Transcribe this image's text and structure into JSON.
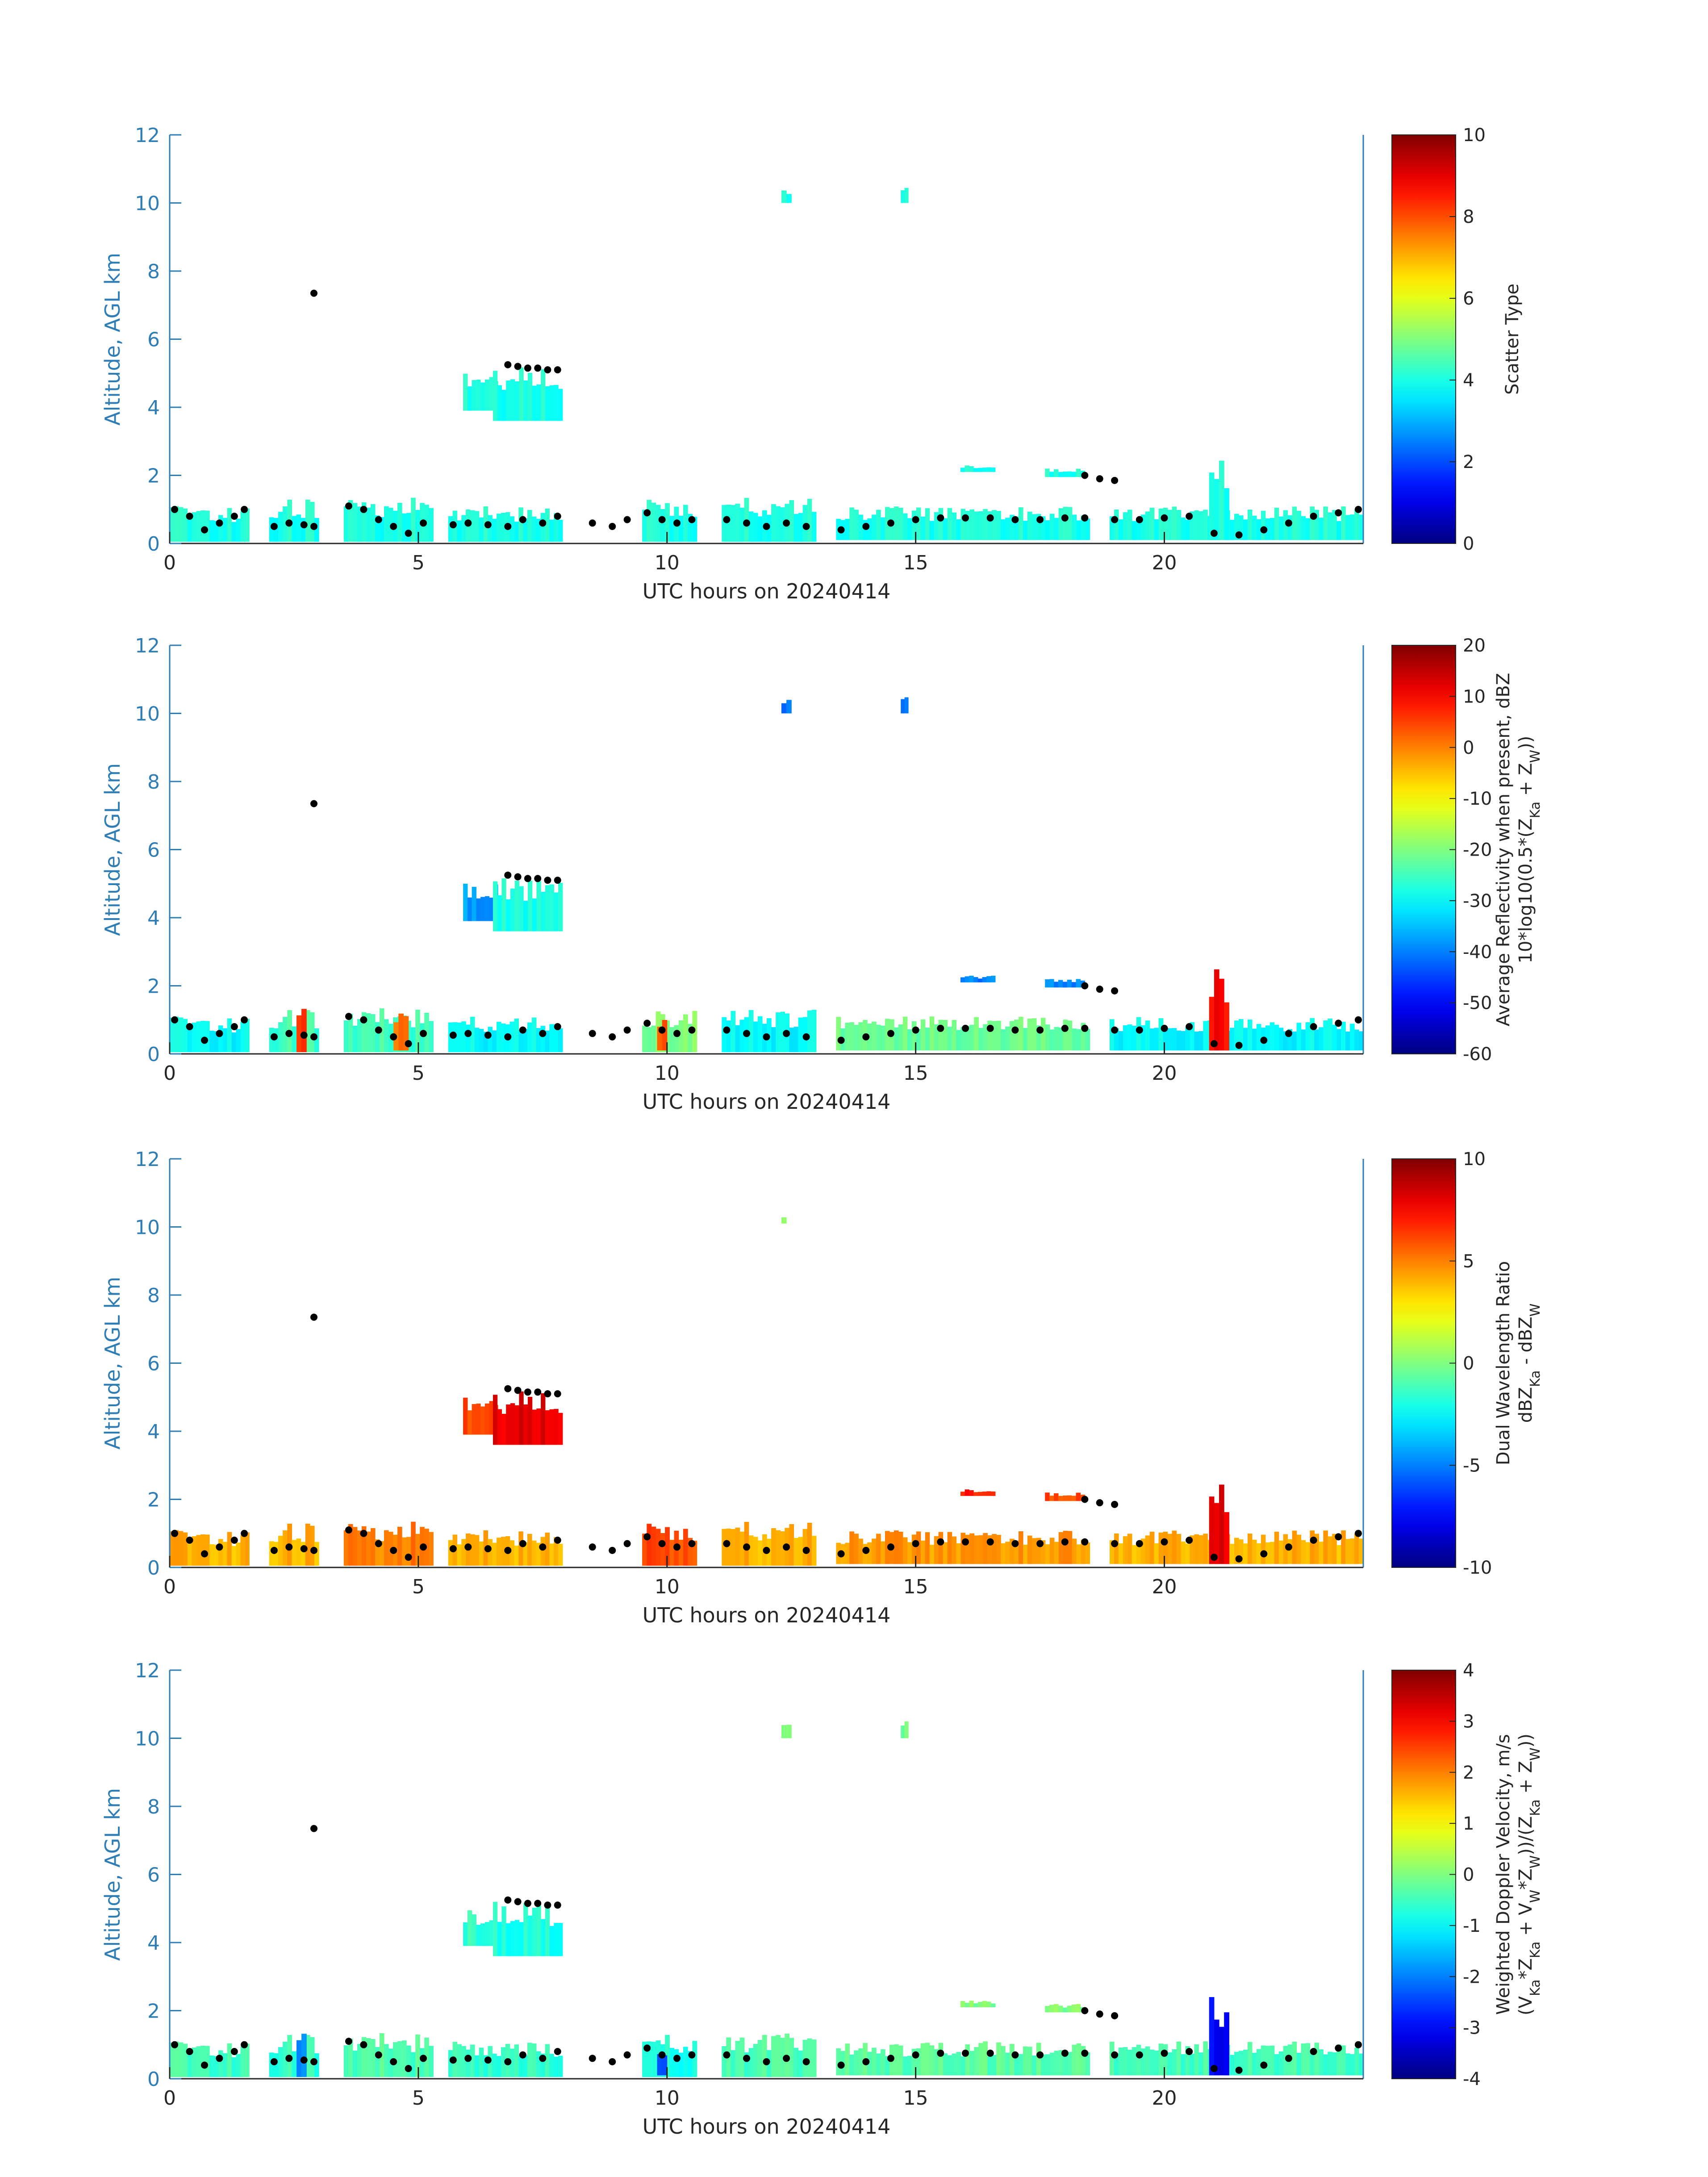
{
  "colors": {
    "axis": "#2e7db5",
    "text": "#262626",
    "cloud_base_dots": "#000000"
  },
  "colormap": "jet",
  "chart_data": [
    {
      "type": "heatmap",
      "variable": "scatter_type",
      "xlabel": "UTC hours on 20240414",
      "ylabel": "Altitude, AGL km",
      "xlim": [
        0,
        24
      ],
      "ylim": [
        0,
        12
      ],
      "xticks": [
        "0",
        "5",
        "10",
        "15",
        "20"
      ],
      "yticks": [
        "0",
        "2",
        "4",
        "6",
        "8",
        "10",
        "12"
      ],
      "colorbar": {
        "label_lines": [
          "Scatter Type"
        ],
        "clim": [
          0,
          10
        ],
        "ticks": [
          "0",
          "2",
          "4",
          "6",
          "8",
          "10"
        ]
      },
      "regions": [
        {
          "t0": 0.0,
          "t1": 1.6,
          "z0": 0.05,
          "z1": 1.1,
          "value": 4.0
        },
        {
          "t0": 2.0,
          "t1": 3.0,
          "z0": 0.05,
          "z1": 1.3,
          "value": 4.0
        },
        {
          "t0": 3.5,
          "t1": 5.3,
          "z0": 0.05,
          "z1": 1.35,
          "value": 4.0
        },
        {
          "t0": 5.6,
          "t1": 7.9,
          "z0": 0.05,
          "z1": 1.1,
          "value": 4.0
        },
        {
          "t0": 9.5,
          "t1": 10.6,
          "z0": 0.05,
          "z1": 1.3,
          "value": 4.0
        },
        {
          "t0": 11.1,
          "t1": 13.0,
          "z0": 0.05,
          "z1": 1.35,
          "value": 4.0
        },
        {
          "t0": 13.4,
          "t1": 18.5,
          "z0": 0.1,
          "z1": 1.1,
          "value": 4.0
        },
        {
          "t0": 18.9,
          "t1": 24.0,
          "z0": 0.1,
          "z1": 1.1,
          "value": 4.0
        },
        {
          "t0": 20.9,
          "t1": 21.3,
          "z0": 0.1,
          "z1": 2.6,
          "value": 4.0
        },
        {
          "t0": 5.9,
          "t1": 6.6,
          "z0": 3.9,
          "z1": 5.0,
          "value": 4.0
        },
        {
          "t0": 6.5,
          "t1": 7.9,
          "z0": 3.6,
          "z1": 5.2,
          "value": 4.0
        },
        {
          "t0": 15.9,
          "t1": 16.6,
          "z0": 2.1,
          "z1": 2.3,
          "value": 4.0
        },
        {
          "t0": 17.6,
          "t1": 18.4,
          "z0": 1.95,
          "z1": 2.2,
          "value": 4.0
        },
        {
          "t0": 12.3,
          "t1": 12.5,
          "z0": 10.0,
          "z1": 10.4,
          "value": 4.0
        },
        {
          "t0": 14.7,
          "t1": 14.85,
          "z0": 10.0,
          "z1": 10.5,
          "value": 4.0
        }
      ]
    },
    {
      "type": "heatmap",
      "variable": "average_reflectivity",
      "xlabel": "UTC hours on 20240414",
      "ylabel": "Altitude, AGL km",
      "xlim": [
        0,
        24
      ],
      "ylim": [
        0,
        12
      ],
      "xticks": [
        "0",
        "5",
        "10",
        "15",
        "20"
      ],
      "yticks": [
        "0",
        "2",
        "4",
        "6",
        "8",
        "10",
        "12"
      ],
      "colorbar": {
        "label_lines": [
          "Average Reflectivity when present, dBZ",
          "10*log10(0.5*(Z",
          "Ka",
          " + Z",
          "W",
          "))"
        ],
        "clim": [
          -60,
          20
        ],
        "ticks": [
          "-60",
          "-50",
          "-40",
          "-30",
          "-20",
          "-10",
          "0",
          "10",
          "20"
        ]
      },
      "regions": [
        {
          "t0": 0.0,
          "t1": 1.6,
          "z0": 0.05,
          "z1": 1.1,
          "value": -30
        },
        {
          "t0": 2.0,
          "t1": 3.0,
          "z0": 0.05,
          "z1": 1.3,
          "value": -25
        },
        {
          "t0": 2.55,
          "t1": 2.75,
          "z0": 0.05,
          "z1": 1.4,
          "value": 5
        },
        {
          "t0": 3.5,
          "t1": 5.3,
          "z0": 0.05,
          "z1": 1.35,
          "value": -25
        },
        {
          "t0": 4.5,
          "t1": 4.8,
          "z0": 0.1,
          "z1": 1.2,
          "value": 0
        },
        {
          "t0": 5.6,
          "t1": 7.9,
          "z0": 0.05,
          "z1": 1.1,
          "value": -30
        },
        {
          "t0": 9.5,
          "t1": 10.6,
          "z0": 0.05,
          "z1": 1.3,
          "value": -20
        },
        {
          "t0": 9.8,
          "t1": 10.0,
          "z0": 0.1,
          "z1": 1.1,
          "value": 3
        },
        {
          "t0": 11.1,
          "t1": 13.0,
          "z0": 0.05,
          "z1": 1.35,
          "value": -30
        },
        {
          "t0": 13.4,
          "t1": 18.5,
          "z0": 0.1,
          "z1": 1.1,
          "value": -22
        },
        {
          "t0": 18.9,
          "t1": 24.0,
          "z0": 0.1,
          "z1": 1.1,
          "value": -30
        },
        {
          "t0": 20.9,
          "t1": 21.3,
          "z0": 0.1,
          "z1": 2.6,
          "value": 10
        },
        {
          "t0": 5.9,
          "t1": 6.6,
          "z0": 3.9,
          "z1": 5.0,
          "value": -38
        },
        {
          "t0": 6.5,
          "t1": 7.9,
          "z0": 3.6,
          "z1": 5.2,
          "value": -28
        },
        {
          "t0": 15.9,
          "t1": 16.6,
          "z0": 2.1,
          "z1": 2.3,
          "value": -40
        },
        {
          "t0": 17.6,
          "t1": 18.4,
          "z0": 1.95,
          "z1": 2.2,
          "value": -40
        },
        {
          "t0": 12.3,
          "t1": 12.5,
          "z0": 10.0,
          "z1": 10.4,
          "value": -42
        },
        {
          "t0": 14.7,
          "t1": 14.85,
          "z0": 10.0,
          "z1": 10.5,
          "value": -42
        }
      ]
    },
    {
      "type": "heatmap",
      "variable": "dual_wavelength_ratio",
      "xlabel": "UTC hours on 20240414",
      "ylabel": "Altitude, AGL km",
      "xlim": [
        0,
        24
      ],
      "ylim": [
        0,
        12
      ],
      "xticks": [
        "0",
        "5",
        "10",
        "15",
        "20"
      ],
      "yticks": [
        "0",
        "2",
        "4",
        "6",
        "8",
        "10",
        "12"
      ],
      "colorbar": {
        "label_lines": [
          "Dual Wavelength Ratio",
          "dBZ",
          "Ka",
          " - dBZ",
          "W"
        ],
        "clim": [
          -10,
          10
        ],
        "ticks": [
          "-10",
          "-5",
          "0",
          "5",
          "10"
        ]
      },
      "regions": [
        {
          "t0": 0.0,
          "t1": 1.6,
          "z0": 0.05,
          "z1": 1.1,
          "value": 4
        },
        {
          "t0": 2.0,
          "t1": 3.0,
          "z0": 0.05,
          "z1": 1.3,
          "value": 4
        },
        {
          "t0": 3.5,
          "t1": 5.3,
          "z0": 0.05,
          "z1": 1.35,
          "value": 5
        },
        {
          "t0": 5.6,
          "t1": 7.9,
          "z0": 0.05,
          "z1": 1.1,
          "value": 4
        },
        {
          "t0": 9.5,
          "t1": 10.6,
          "z0": 0.05,
          "z1": 1.3,
          "value": 6
        },
        {
          "t0": 11.1,
          "t1": 13.0,
          "z0": 0.05,
          "z1": 1.35,
          "value": 4
        },
        {
          "t0": 13.4,
          "t1": 18.5,
          "z0": 0.1,
          "z1": 1.1,
          "value": 4.5
        },
        {
          "t0": 18.9,
          "t1": 24.0,
          "z0": 0.1,
          "z1": 1.1,
          "value": 4
        },
        {
          "t0": 20.9,
          "t1": 21.3,
          "z0": 0.1,
          "z1": 2.6,
          "value": 8
        },
        {
          "t0": 5.9,
          "t1": 6.6,
          "z0": 3.9,
          "z1": 5.0,
          "value": 6
        },
        {
          "t0": 6.5,
          "t1": 7.9,
          "z0": 3.6,
          "z1": 5.2,
          "value": 8
        },
        {
          "t0": 15.9,
          "t1": 16.6,
          "z0": 2.1,
          "z1": 2.3,
          "value": 7
        },
        {
          "t0": 17.6,
          "t1": 18.4,
          "z0": 1.95,
          "z1": 2.2,
          "value": 6
        },
        {
          "t0": 12.3,
          "t1": 12.4,
          "z0": 10.1,
          "z1": 10.3,
          "value": 0
        }
      ]
    },
    {
      "type": "heatmap",
      "variable": "weighted_doppler_velocity",
      "xlabel": "UTC hours on 20240414",
      "ylabel": "Altitude, AGL km",
      "xlim": [
        0,
        24
      ],
      "ylim": [
        0,
        12
      ],
      "xticks": [
        "0",
        "5",
        "10",
        "15",
        "20"
      ],
      "yticks": [
        "0",
        "2",
        "4",
        "6",
        "8",
        "10",
        "12"
      ],
      "colorbar": {
        "label_lines": [
          "Weighted Doppler Velocity, m/s",
          "(V",
          "Ka",
          "*Z",
          "Ka",
          " + V",
          "W",
          "*Z",
          "W",
          "))/(Z",
          "Ka",
          " + Z",
          "W",
          "))"
        ],
        "clim": [
          -4,
          4
        ],
        "ticks": [
          "-4",
          "-3",
          "-2",
          "-1",
          "0",
          "1",
          "2",
          "3",
          "4"
        ]
      },
      "regions": [
        {
          "t0": 0.0,
          "t1": 1.6,
          "z0": 0.05,
          "z1": 1.1,
          "value": -0.5
        },
        {
          "t0": 2.0,
          "t1": 3.0,
          "z0": 0.05,
          "z1": 1.3,
          "value": -0.6
        },
        {
          "t0": 2.55,
          "t1": 2.75,
          "z0": 0.05,
          "z1": 1.4,
          "value": -2.0
        },
        {
          "t0": 3.5,
          "t1": 5.3,
          "z0": 0.05,
          "z1": 1.35,
          "value": -0.4
        },
        {
          "t0": 5.6,
          "t1": 7.9,
          "z0": 0.05,
          "z1": 1.1,
          "value": -0.6
        },
        {
          "t0": 9.5,
          "t1": 10.6,
          "z0": 0.05,
          "z1": 1.3,
          "value": -0.8
        },
        {
          "t0": 9.8,
          "t1": 10.0,
          "z0": 0.1,
          "z1": 1.1,
          "value": -2.2
        },
        {
          "t0": 11.1,
          "t1": 13.0,
          "z0": 0.05,
          "z1": 1.35,
          "value": -0.4
        },
        {
          "t0": 13.4,
          "t1": 18.5,
          "z0": 0.1,
          "z1": 1.1,
          "value": -0.3
        },
        {
          "t0": 18.9,
          "t1": 24.0,
          "z0": 0.1,
          "z1": 1.1,
          "value": -0.5
        },
        {
          "t0": 20.9,
          "t1": 21.3,
          "z0": 0.1,
          "z1": 2.6,
          "value": -3.0
        },
        {
          "t0": 5.9,
          "t1": 6.6,
          "z0": 3.9,
          "z1": 5.0,
          "value": -0.6
        },
        {
          "t0": 6.5,
          "t1": 7.9,
          "z0": 3.6,
          "z1": 5.2,
          "value": -0.8
        },
        {
          "t0": 15.9,
          "t1": 16.6,
          "z0": 2.1,
          "z1": 2.3,
          "value": 0.0
        },
        {
          "t0": 17.6,
          "t1": 18.4,
          "z0": 1.95,
          "z1": 2.2,
          "value": 0.0
        },
        {
          "t0": 12.3,
          "t1": 12.5,
          "z0": 10.0,
          "z1": 10.4,
          "value": -0.2
        },
        {
          "t0": 14.7,
          "t1": 14.85,
          "z0": 10.0,
          "z1": 10.5,
          "value": -0.2
        }
      ]
    }
  ],
  "cloud_base_markers": {
    "series": [
      {
        "t": [
          0.1,
          0.4,
          0.7,
          1.0,
          1.3,
          1.5
        ],
        "z": [
          1.0,
          0.8,
          0.4,
          0.6,
          0.8,
          1.0
        ]
      },
      {
        "t": [
          2.1,
          2.4,
          2.7,
          2.9
        ],
        "z": [
          0.5,
          0.6,
          0.55,
          0.5
        ]
      },
      {
        "t": [
          2.9
        ],
        "z": [
          7.35
        ]
      },
      {
        "t": [
          3.6,
          3.9,
          4.2,
          4.5,
          4.8,
          5.1
        ],
        "z": [
          1.1,
          1.0,
          0.7,
          0.5,
          0.3,
          0.6
        ]
      },
      {
        "t": [
          5.7,
          6.0,
          6.4,
          6.8,
          7.1,
          7.5,
          7.8
        ],
        "z": [
          0.55,
          0.6,
          0.55,
          0.5,
          0.7,
          0.6,
          0.8
        ]
      },
      {
        "t": [
          6.8,
          7.0,
          7.2,
          7.4,
          7.6,
          7.8
        ],
        "z": [
          5.25,
          5.2,
          5.15,
          5.15,
          5.1,
          5.1
        ]
      },
      {
        "t": [
          8.5,
          8.9,
          9.2,
          9.6,
          9.9,
          10.2,
          10.5
        ],
        "z": [
          0.6,
          0.5,
          0.7,
          0.9,
          0.7,
          0.6,
          0.7
        ]
      },
      {
        "t": [
          11.2,
          11.6,
          12.0,
          12.4,
          12.8
        ],
        "z": [
          0.7,
          0.6,
          0.5,
          0.6,
          0.5
        ]
      },
      {
        "t": [
          13.5,
          14.0,
          14.5,
          15.0,
          15.5,
          16.0,
          16.5,
          17.0,
          17.5,
          18.0,
          18.4
        ],
        "z": [
          0.4,
          0.5,
          0.6,
          0.7,
          0.75,
          0.75,
          0.75,
          0.7,
          0.7,
          0.75,
          0.75
        ]
      },
      {
        "t": [
          18.4,
          18.7,
          19.0
        ],
        "z": [
          2.0,
          1.9,
          1.85
        ]
      },
      {
        "t": [
          19.0,
          19.5,
          20.0,
          20.5,
          21.0,
          21.5,
          22.0,
          22.5,
          23.0,
          23.5,
          23.9
        ],
        "z": [
          0.7,
          0.7,
          0.75,
          0.8,
          0.3,
          0.25,
          0.4,
          0.6,
          0.8,
          0.9,
          1.0
        ]
      }
    ]
  }
}
